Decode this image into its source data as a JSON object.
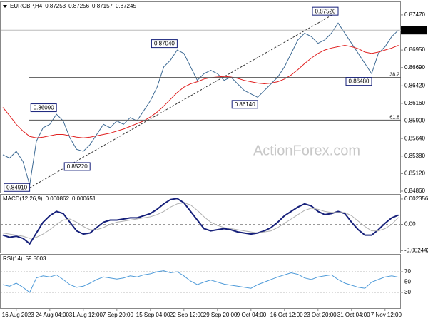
{
  "chart_data": [
    {
      "type": "line",
      "symbol": "EURGBP,H4",
      "ohlc": [
        0.87253,
        0.87256,
        0.87157,
        0.87245
      ],
      "watermark": "ActionForex.com",
      "categories": [
        null,
        null,
        "16 Aug 2023",
        null,
        null,
        null,
        null,
        "24 Aug 04:00",
        null,
        null,
        null,
        null,
        "31 Aug 12:00",
        null,
        null,
        null,
        null,
        "7 Sep 20:00",
        null,
        null,
        null,
        null,
        "15 Sep 04:00",
        null,
        null,
        null,
        null,
        "22 Sep 12:00",
        null,
        null,
        null,
        null,
        "29 Sep 20:00",
        null,
        null,
        null,
        null,
        "9 Oct 04:00",
        null,
        null,
        null,
        null,
        "16 Oct 12:00",
        null,
        null,
        null,
        null,
        "23 Oct 20:00",
        null,
        null,
        null,
        null,
        "31 Oct 04:00",
        null,
        null,
        null,
        null,
        "7 Nov 12:00",
        null,
        null
      ],
      "series": [
        {
          "color": "#3d6a94",
          "values": [
            0.854,
            0.8535,
            0.8545,
            0.853,
            0.8495,
            0.856,
            0.858,
            0.8585,
            0.86,
            0.859,
            0.8565,
            0.8548,
            0.8545,
            0.8555,
            0.857,
            0.8585,
            0.858,
            0.859,
            0.8585,
            0.8595,
            0.859,
            0.8605,
            0.862,
            0.864,
            0.867,
            0.868,
            0.8695,
            0.869,
            0.867,
            0.865,
            0.866,
            0.8665,
            0.866,
            0.865,
            0.8655,
            0.8645,
            0.8635,
            0.863,
            0.8625,
            0.8635,
            0.8645,
            0.8655,
            0.867,
            0.869,
            0.871,
            0.872,
            0.8715,
            0.8705,
            0.871,
            0.872,
            0.8735,
            0.872,
            0.8705,
            0.869,
            0.8675,
            0.866,
            0.869,
            0.87,
            0.8715,
            0.87245
          ]
        },
        {
          "color": "#e02020",
          "values": [
            0.861,
            0.8598,
            0.8585,
            0.8575,
            0.8567,
            0.8565,
            0.8566,
            0.8568,
            0.857,
            0.857,
            0.8568,
            0.8566,
            0.8565,
            0.8566,
            0.8568,
            0.857,
            0.8572,
            0.8575,
            0.8578,
            0.8582,
            0.8586,
            0.859,
            0.8596,
            0.8603,
            0.8612,
            0.8622,
            0.8632,
            0.864,
            0.8645,
            0.8648,
            0.8652,
            0.8654,
            0.8655,
            0.8656,
            0.8655,
            0.8653,
            0.865,
            0.8648,
            0.8646,
            0.8645,
            0.8646,
            0.8648,
            0.8652,
            0.8658,
            0.8666,
            0.8675,
            0.8683,
            0.869,
            0.8695,
            0.8698,
            0.87,
            0.8702,
            0.87,
            0.8697,
            0.8692,
            0.869,
            0.8692,
            0.8695,
            0.8698,
            0.8702
          ]
        }
      ],
      "ylim": [
        0.84839,
        0.87659
      ],
      "yticks": [
        {
          "value": 0.8747,
          "label": "0.87470"
        },
        {
          "value": 0.8695,
          "label": "0.86950"
        },
        {
          "value": 0.8669,
          "label": "0.86690"
        },
        {
          "value": 0.8642,
          "label": "0.86420"
        },
        {
          "value": 0.8616,
          "label": "0.86160"
        },
        {
          "value": 0.859,
          "label": "0.85900"
        },
        {
          "value": 0.8564,
          "label": "0.85640"
        },
        {
          "value": 0.8538,
          "label": "0.85380"
        },
        {
          "value": 0.8512,
          "label": "0.85120"
        },
        {
          "value": 0.8486,
          "label": "0.84860"
        }
      ],
      "last_price": 0.87245,
      "annotations": [
        {
          "value": 0.8752,
          "label": "0.87520"
        },
        {
          "value": 0.8704,
          "label": "0.87040"
        },
        {
          "value": 0.8609,
          "label": "0.86090"
        },
        {
          "value": 0.8614,
          "label": "0.86140"
        },
        {
          "value": 0.8522,
          "label": "0.85220"
        },
        {
          "value": 0.8491,
          "label": "0.84910"
        },
        {
          "value": 0.8648,
          "label": "0.86480"
        }
      ],
      "fib_levels": [
        {
          "level": 38.2,
          "price": 0.86544
        },
        {
          "level": 61.8,
          "price": 0.85912
        }
      ]
    },
    {
      "type": "line",
      "name": "MACD(12,26,9)",
      "readings": [
        0.000862,
        0.000651
      ],
      "series": [
        {
          "color": "#16207a",
          "values": [
            -0.001,
            -0.0012,
            -0.0011,
            -0.0013,
            -0.0018,
            -0.0008,
            0.0002,
            0.0008,
            0.0012,
            0.001,
            0.0002,
            -0.0006,
            -0.0009,
            -0.0008,
            -0.0003,
            0.0002,
            0.0004,
            0.0004,
            0.0005,
            0.0006,
            0.0006,
            0.0008,
            0.001,
            0.0014,
            0.0019,
            0.0023,
            0.0024,
            0.002,
            0.0012,
            0.0004,
            -0.0004,
            -0.0006,
            -0.0005,
            -0.0004,
            -0.0005,
            -0.0007,
            -0.0008,
            -0.0009,
            -0.0008,
            -0.0006,
            -0.0003,
            0.0002,
            0.0008,
            0.0012,
            0.0016,
            0.0019,
            0.0017,
            0.0012,
            0.0009,
            0.001,
            0.0012,
            0.001,
            0.0002,
            -0.0005,
            -0.001,
            -0.001,
            -0.0005,
            0.0001,
            0.0006,
            0.000862
          ]
        },
        {
          "color": "#b0b0b0",
          "values": [
            -0.0008,
            -0.0009,
            -0.001,
            -0.0011,
            -0.0013,
            -0.0012,
            -0.0009,
            -0.0005,
            0.0,
            0.0004,
            0.0005,
            0.0002,
            -0.0002,
            -0.0005,
            -0.0005,
            -0.0003,
            0.0,
            0.0002,
            0.0003,
            0.0004,
            0.0005,
            0.0006,
            0.0007,
            0.0009,
            0.0012,
            0.0016,
            0.0019,
            0.002,
            0.0018,
            0.0013,
            0.0007,
            0.0002,
            -0.0001,
            -0.0003,
            -0.0004,
            -0.0005,
            -0.0006,
            -0.0007,
            -0.0008,
            -0.0007,
            -0.0006,
            -0.0003,
            0.0001,
            0.0005,
            0.0009,
            0.0013,
            0.0015,
            0.0014,
            0.0012,
            0.0011,
            0.0011,
            0.0011,
            0.0008,
            0.0003,
            -0.0002,
            -0.0006,
            -0.0006,
            -0.0004,
            0.0,
            0.000651
          ]
        }
      ],
      "ylim": [
        -0.002683,
        0.002749
      ],
      "yticks": [
        0.002356,
        {
          "value": 0,
          "label": "0.00"
        },
        -0.002442
      ]
    },
    {
      "type": "line",
      "name": "RSI(14)",
      "readings": [
        59.5003
      ],
      "series": [
        {
          "color": "#4f9bd9",
          "values": [
            45,
            42,
            48,
            40,
            30,
            58,
            62,
            60,
            64,
            55,
            45,
            40,
            42,
            48,
            55,
            60,
            58,
            56,
            58,
            62,
            60,
            64,
            66,
            70,
            72,
            68,
            70,
            62,
            52,
            45,
            50,
            54,
            50,
            46,
            44,
            42,
            40,
            38,
            45,
            50,
            55,
            60,
            64,
            68,
            65,
            58,
            55,
            60,
            62,
            64,
            55,
            48,
            44,
            40,
            38,
            50,
            55,
            60,
            62,
            59.5003
          ]
        }
      ],
      "ylim": [
        -0.3,
        103.1
      ],
      "yticks": [
        70,
        50,
        30
      ],
      "grid": true
    }
  ]
}
